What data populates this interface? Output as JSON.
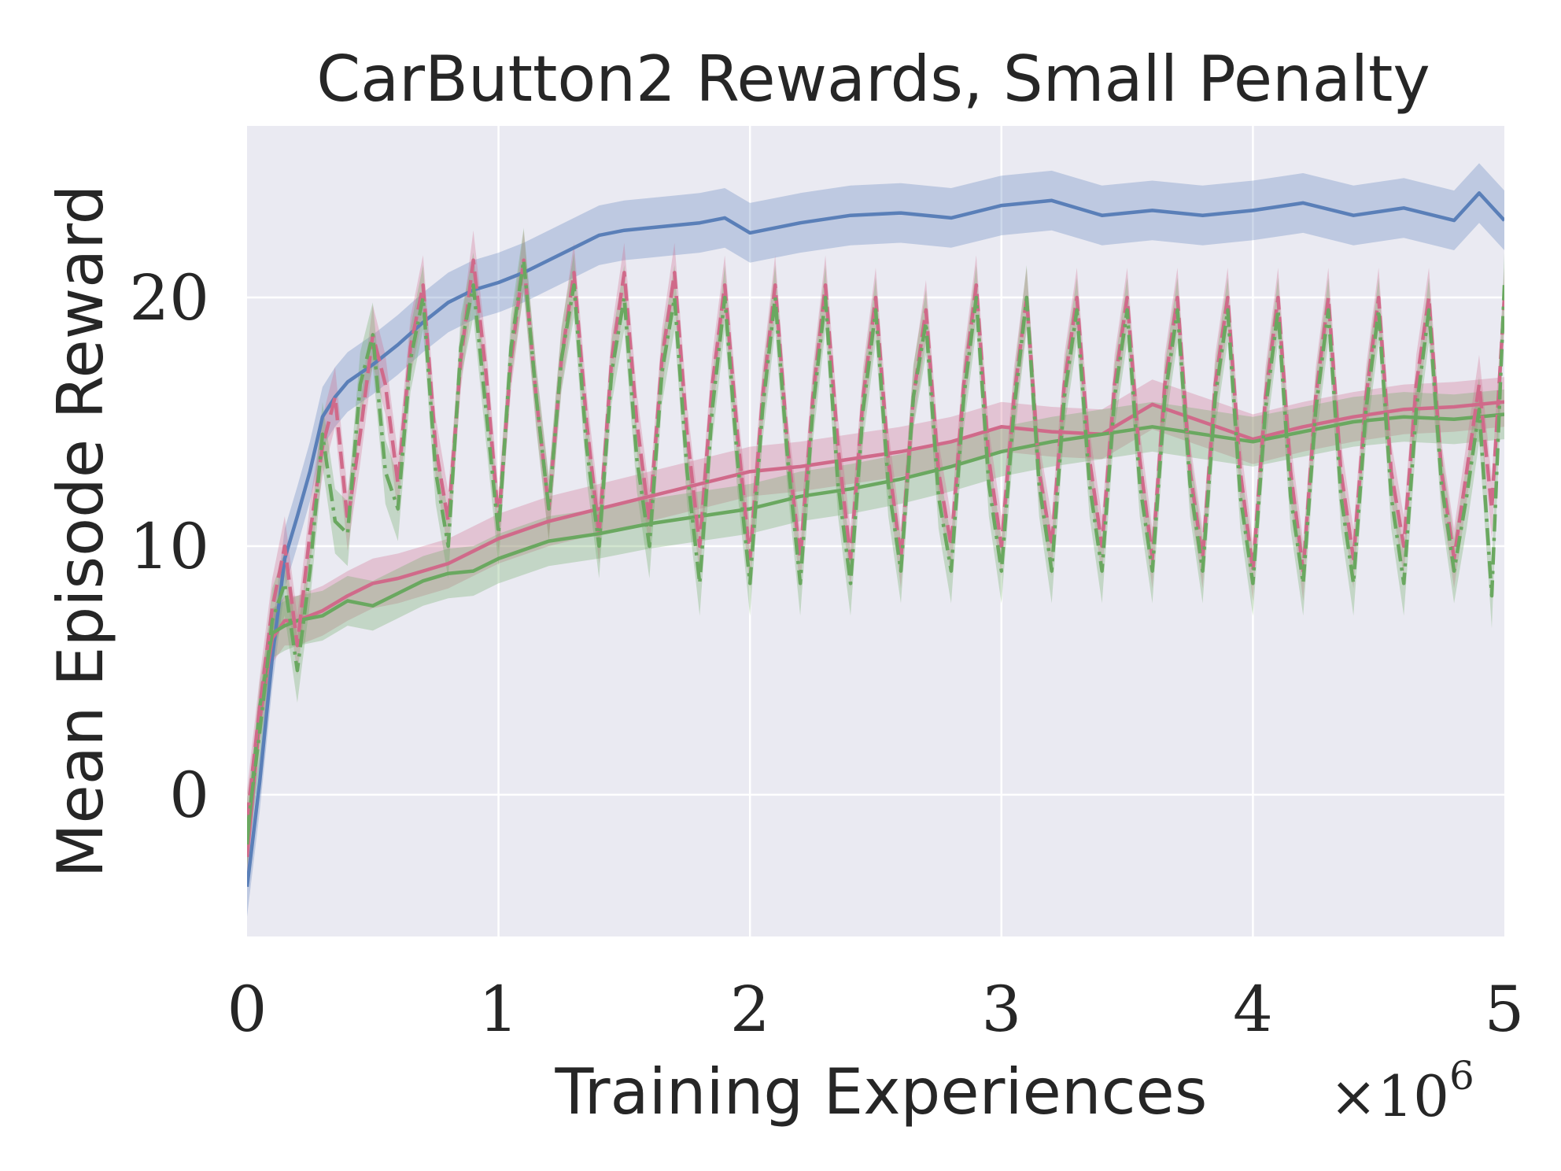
{
  "chart_data": {
    "type": "line",
    "title": "CarButton2 Rewards, Small Penalty",
    "xlabel": "Training Experiences",
    "ylabel": "Mean Episode Reward",
    "x_offset_label": {
      "base": "×10",
      "exponent": "6"
    },
    "xlim": [
      0,
      5
    ],
    "ylim": [
      -5.7,
      26.9
    ],
    "xticks": [
      0,
      1,
      2,
      3,
      4,
      5
    ],
    "xtick_labels": [
      "0",
      "1",
      "2",
      "3",
      "4",
      "5"
    ],
    "yticks": [
      0,
      10,
      20
    ],
    "ytick_labels": [
      "0",
      "10",
      "20"
    ],
    "grid": true,
    "colors": {
      "background": "#eaeaf2",
      "grid": "#ffffff",
      "blue": "#4c72b0",
      "pink": "#dd8452",
      "rose": "#d6668c",
      "green": "#6aa860"
    },
    "series": [
      {
        "name": "blue-solid",
        "color": "#5a7fb8",
        "style": "solid",
        "band": 1.2,
        "x": [
          0,
          0.05,
          0.1,
          0.15,
          0.2,
          0.25,
          0.3,
          0.35,
          0.4,
          0.5,
          0.6,
          0.7,
          0.8,
          0.9,
          1.0,
          1.1,
          1.2,
          1.3,
          1.4,
          1.5,
          1.6,
          1.7,
          1.8,
          1.9,
          2.0,
          2.2,
          2.4,
          2.6,
          2.8,
          3.0,
          3.2,
          3.4,
          3.6,
          3.8,
          4.0,
          4.2,
          4.4,
          4.6,
          4.8,
          4.9,
          5.0
        ],
        "y": [
          -3.7,
          0.5,
          5.5,
          9.5,
          11.2,
          13.0,
          15.2,
          16.0,
          16.6,
          17.3,
          18.1,
          19.0,
          19.8,
          20.3,
          20.6,
          21.0,
          21.5,
          22.0,
          22.5,
          22.7,
          22.8,
          22.9,
          23.0,
          23.2,
          22.6,
          23.0,
          23.3,
          23.4,
          23.2,
          23.7,
          23.9,
          23.3,
          23.5,
          23.3,
          23.5,
          23.8,
          23.3,
          23.6,
          23.1,
          24.2,
          23.1
        ]
      },
      {
        "name": "rose-solid",
        "color": "#d06a8a",
        "style": "solid",
        "band": 1.0,
        "x": [
          0,
          0.05,
          0.1,
          0.15,
          0.2,
          0.3,
          0.4,
          0.5,
          0.6,
          0.7,
          0.8,
          0.9,
          1.0,
          1.2,
          1.4,
          1.6,
          1.8,
          2.0,
          2.2,
          2.4,
          2.6,
          2.8,
          3.0,
          3.2,
          3.4,
          3.6,
          3.8,
          4.0,
          4.2,
          4.4,
          4.6,
          4.8,
          5.0
        ],
        "y": [
          -2.5,
          3.0,
          6.3,
          7.0,
          7.0,
          7.4,
          8.0,
          8.5,
          8.7,
          9.0,
          9.3,
          9.8,
          10.3,
          11.0,
          11.5,
          12.0,
          12.5,
          13.0,
          13.2,
          13.5,
          13.8,
          14.2,
          14.8,
          14.6,
          14.5,
          15.7,
          15.0,
          14.3,
          14.8,
          15.2,
          15.5,
          15.6,
          15.8
        ]
      },
      {
        "name": "green-solid",
        "color": "#6aa860",
        "style": "solid",
        "band": 1.0,
        "x": [
          0,
          0.05,
          0.1,
          0.15,
          0.2,
          0.3,
          0.4,
          0.5,
          0.6,
          0.7,
          0.8,
          0.9,
          1.0,
          1.2,
          1.4,
          1.6,
          1.8,
          2.0,
          2.2,
          2.4,
          2.6,
          2.8,
          3.0,
          3.2,
          3.4,
          3.6,
          3.8,
          4.0,
          4.2,
          4.4,
          4.6,
          4.8,
          5.0
        ],
        "y": [
          -2.0,
          3.5,
          6.5,
          6.8,
          7.0,
          7.2,
          7.8,
          7.6,
          8.1,
          8.6,
          8.9,
          9.0,
          9.5,
          10.2,
          10.5,
          10.9,
          11.2,
          11.5,
          12.0,
          12.3,
          12.7,
          13.2,
          13.8,
          14.2,
          14.5,
          14.8,
          14.5,
          14.2,
          14.6,
          15.0,
          15.2,
          15.1,
          15.3
        ]
      },
      {
        "name": "rose-dashed-oscillating",
        "color": "#d06a8a",
        "style": "dashed",
        "band": 1.2,
        "x": [
          0,
          0.05,
          0.1,
          0.15,
          0.2,
          0.25,
          0.3,
          0.35,
          0.4,
          0.45,
          0.5,
          0.55,
          0.6,
          0.65,
          0.7,
          0.75,
          0.8,
          0.85,
          0.9,
          0.95,
          1.0,
          1.05,
          1.1,
          1.15,
          1.2,
          1.25,
          1.3,
          1.35,
          1.4,
          1.45,
          1.5,
          1.55,
          1.6,
          1.65,
          1.7,
          1.75,
          1.8,
          1.85,
          1.9,
          1.95,
          2.0,
          2.05,
          2.1,
          2.15,
          2.2,
          2.25,
          2.3,
          2.35,
          2.4,
          2.45,
          2.5,
          2.55,
          2.6,
          2.65,
          2.7,
          2.75,
          2.8,
          2.85,
          2.9,
          2.95,
          3.0,
          3.05,
          3.1,
          3.15,
          3.2,
          3.25,
          3.3,
          3.35,
          3.4,
          3.45,
          3.5,
          3.55,
          3.6,
          3.65,
          3.7,
          3.75,
          3.8,
          3.85,
          3.9,
          3.95,
          4.0,
          4.05,
          4.1,
          4.15,
          4.2,
          4.25,
          4.3,
          4.35,
          4.4,
          4.45,
          4.5,
          4.55,
          4.6,
          4.65,
          4.7,
          4.75,
          4.8,
          4.85,
          4.9,
          4.95,
          5.0
        ],
        "y": [
          -1.0,
          3.5,
          7.5,
          10.0,
          6.0,
          10.5,
          14.0,
          16.0,
          11.0,
          14.5,
          18.5,
          16.5,
          12.5,
          18.0,
          20.5,
          14.0,
          11.0,
          17.5,
          21.5,
          17.0,
          11.0,
          17.5,
          21.5,
          16.0,
          11.5,
          17.5,
          21.0,
          15.0,
          10.5,
          17.5,
          21.0,
          15.0,
          11.0,
          17.5,
          21.0,
          14.5,
          10.0,
          16.5,
          20.5,
          14.5,
          9.5,
          16.0,
          20.5,
          14.0,
          9.5,
          16.0,
          20.5,
          14.0,
          9.5,
          16.0,
          20.0,
          13.5,
          9.5,
          16.0,
          19.5,
          13.0,
          10.0,
          16.5,
          20.5,
          13.5,
          10.0,
          16.0,
          20.0,
          13.0,
          10.0,
          16.5,
          20.0,
          13.5,
          10.0,
          16.5,
          20.0,
          13.5,
          9.5,
          16.5,
          20.0,
          13.0,
          9.5,
          16.5,
          20.0,
          13.0,
          9.0,
          16.0,
          20.0,
          13.0,
          9.0,
          16.0,
          20.0,
          13.0,
          9.5,
          16.0,
          20.0,
          13.0,
          10.0,
          16.5,
          20.0,
          13.0,
          9.5,
          13.0,
          16.5,
          11.5,
          20.0
        ]
      },
      {
        "name": "green-dashdot-oscillating",
        "color": "#6aa860",
        "style": "dashdot",
        "band": 1.3,
        "x": [
          0,
          0.05,
          0.1,
          0.15,
          0.2,
          0.25,
          0.3,
          0.35,
          0.4,
          0.45,
          0.5,
          0.55,
          0.6,
          0.65,
          0.7,
          0.75,
          0.8,
          0.85,
          0.9,
          0.95,
          1.0,
          1.05,
          1.1,
          1.15,
          1.2,
          1.25,
          1.3,
          1.35,
          1.4,
          1.45,
          1.5,
          1.55,
          1.6,
          1.65,
          1.7,
          1.75,
          1.8,
          1.85,
          1.9,
          1.95,
          2.0,
          2.05,
          2.1,
          2.15,
          2.2,
          2.25,
          2.3,
          2.35,
          2.4,
          2.45,
          2.5,
          2.55,
          2.6,
          2.65,
          2.7,
          2.75,
          2.8,
          2.85,
          2.9,
          2.95,
          3.0,
          3.05,
          3.1,
          3.15,
          3.2,
          3.25,
          3.3,
          3.35,
          3.4,
          3.45,
          3.5,
          3.55,
          3.6,
          3.65,
          3.7,
          3.75,
          3.8,
          3.85,
          3.9,
          3.95,
          4.0,
          4.05,
          4.1,
          4.15,
          4.2,
          4.25,
          4.3,
          4.35,
          4.4,
          4.45,
          4.5,
          4.55,
          4.6,
          4.65,
          4.7,
          4.75,
          4.8,
          4.85,
          4.9,
          4.95,
          5.0
        ],
        "y": [
          -1.5,
          2.5,
          7.0,
          8.5,
          5.0,
          9.0,
          14.5,
          11.0,
          10.5,
          16.5,
          18.5,
          13.0,
          11.5,
          17.5,
          20.0,
          13.0,
          10.0,
          18.0,
          20.5,
          15.5,
          10.5,
          18.0,
          21.5,
          16.0,
          11.5,
          17.5,
          20.5,
          14.0,
          10.0,
          17.0,
          20.0,
          13.5,
          10.0,
          17.0,
          20.0,
          13.0,
          8.5,
          15.5,
          20.0,
          13.5,
          8.5,
          15.5,
          20.0,
          13.5,
          8.5,
          15.5,
          20.0,
          12.5,
          8.5,
          15.5,
          19.5,
          12.5,
          9.0,
          16.0,
          19.0,
          12.0,
          9.0,
          16.0,
          20.0,
          12.5,
          9.0,
          15.5,
          20.0,
          12.5,
          9.0,
          16.0,
          19.5,
          12.5,
          9.0,
          16.0,
          19.5,
          12.5,
          9.0,
          16.0,
          19.5,
          12.5,
          9.0,
          16.0,
          19.5,
          12.0,
          8.5,
          15.5,
          19.5,
          12.0,
          8.5,
          15.5,
          19.5,
          12.0,
          8.5,
          15.5,
          19.5,
          12.0,
          8.5,
          15.5,
          19.5,
          12.5,
          9.0,
          12.0,
          15.5,
          8.0,
          20.5
        ]
      }
    ]
  }
}
